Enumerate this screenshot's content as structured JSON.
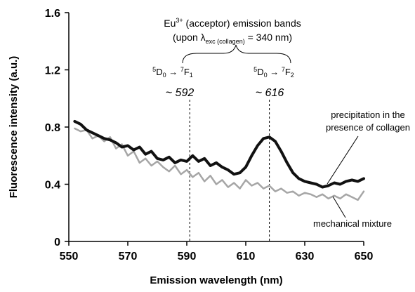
{
  "chart_data": {
    "type": "line",
    "xlabel": "Emission wavelength (nm)",
    "ylabel": "Fluorescence intensity (a.u.)",
    "xlim": [
      550,
      650
    ],
    "ylim": [
      0,
      1.6
    ],
    "x_ticks": [
      "550",
      "570",
      "590",
      "610",
      "630",
      "650"
    ],
    "y_ticks": [
      "0",
      "0.4",
      "0.8",
      "1.2",
      "1.6"
    ],
    "grid": false,
    "series": [
      {
        "name": "precipitation in the presence of collagen",
        "color": "#111111",
        "x": [
          552,
          554,
          556,
          558,
          560,
          562,
          564,
          566,
          568,
          570,
          572,
          574,
          576,
          578,
          580,
          582,
          584,
          586,
          588,
          590,
          592,
          594,
          596,
          598,
          600,
          602,
          604,
          606,
          608,
          610,
          612,
          614,
          616,
          618,
          620,
          622,
          624,
          626,
          628,
          630,
          632,
          634,
          636,
          638,
          640,
          642,
          644,
          646,
          648,
          650
        ],
        "y": [
          0.84,
          0.82,
          0.78,
          0.76,
          0.74,
          0.72,
          0.71,
          0.69,
          0.66,
          0.67,
          0.64,
          0.66,
          0.61,
          0.63,
          0.58,
          0.57,
          0.59,
          0.55,
          0.57,
          0.56,
          0.6,
          0.56,
          0.58,
          0.53,
          0.55,
          0.52,
          0.5,
          0.47,
          0.48,
          0.52,
          0.6,
          0.67,
          0.72,
          0.73,
          0.7,
          0.63,
          0.55,
          0.48,
          0.44,
          0.42,
          0.41,
          0.4,
          0.38,
          0.39,
          0.41,
          0.4,
          0.42,
          0.43,
          0.42,
          0.44
        ]
      },
      {
        "name": "mechanical mixture",
        "color": "#a6a6a6",
        "x": [
          552,
          554,
          556,
          558,
          560,
          562,
          564,
          566,
          568,
          570,
          572,
          574,
          576,
          578,
          580,
          582,
          584,
          586,
          588,
          590,
          592,
          594,
          596,
          598,
          600,
          602,
          604,
          606,
          608,
          610,
          612,
          614,
          616,
          618,
          620,
          622,
          624,
          626,
          628,
          630,
          632,
          634,
          636,
          638,
          640,
          642,
          644,
          646,
          648,
          650
        ],
        "y": [
          0.79,
          0.77,
          0.78,
          0.72,
          0.74,
          0.7,
          0.73,
          0.65,
          0.68,
          0.6,
          0.63,
          0.55,
          0.58,
          0.53,
          0.56,
          0.52,
          0.49,
          0.53,
          0.47,
          0.5,
          0.45,
          0.48,
          0.42,
          0.46,
          0.4,
          0.43,
          0.38,
          0.41,
          0.37,
          0.43,
          0.39,
          0.41,
          0.37,
          0.39,
          0.35,
          0.37,
          0.34,
          0.35,
          0.32,
          0.34,
          0.33,
          0.31,
          0.33,
          0.3,
          0.32,
          0.3,
          0.33,
          0.31,
          0.29,
          0.35
        ]
      }
    ],
    "vlines": [
      591,
      618
    ],
    "annotations": {
      "title_line1_pre": "Eu",
      "title_line1_sup": "3+",
      "title_line1_post": " (acceptor) emission bands",
      "title_line2_pre": "(upon ",
      "title_line2_lambda": "λ",
      "title_line2_sub": "exc (collagen)",
      "title_line2_post": " = 340 nm)",
      "transition1": {
        "sup_a": "5",
        "D": "D",
        "sub_a": "0",
        "arrow": " → ",
        "sup_b": "7",
        "F": "F",
        "sub_b": "1"
      },
      "transition2": {
        "sup_a": "5",
        "D": "D",
        "sub_a": "0",
        "arrow": " → ",
        "sup_b": "7",
        "F": "F",
        "sub_b": "2"
      },
      "peak1": "~ 592",
      "peak2": "~ 616",
      "label_collagen_line1": "precipitation in the",
      "label_collagen_line2": "presence of collagen",
      "label_mixture": "mechanical mixture"
    }
  }
}
